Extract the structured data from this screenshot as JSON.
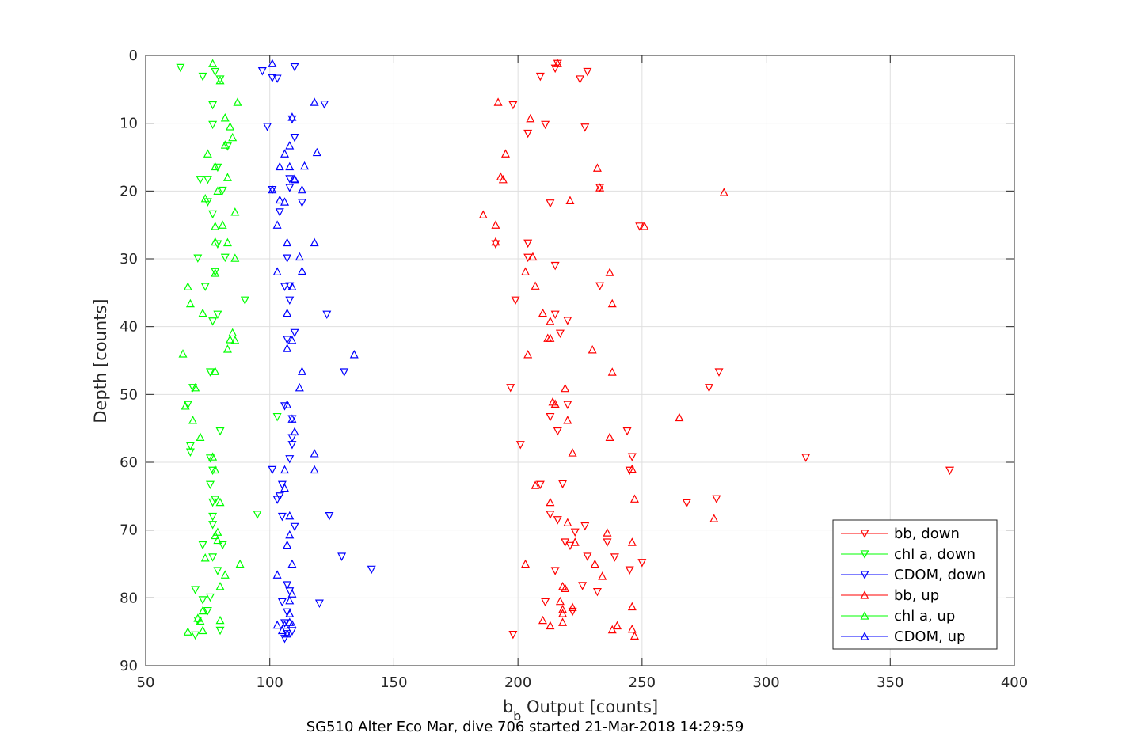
{
  "chart_data": {
    "type": "scatter",
    "title": "",
    "caption": "SG510 Alter Eco Mar, dive 706 started 21-Mar-2018 14:29:59",
    "xlabel_main": "b",
    "xlabel_sub": "b",
    "xlabel_rest": " Output [counts]",
    "ylabel": "Depth [counts]",
    "xlim": [
      50,
      400
    ],
    "ylim": [
      0,
      90
    ],
    "y_reversed": true,
    "grid": true,
    "xticks": [
      "50",
      "100",
      "150",
      "200",
      "250",
      "300",
      "350",
      "400"
    ],
    "yticks": [
      "0",
      "10",
      "20",
      "30",
      "40",
      "50",
      "60",
      "70",
      "80",
      "90"
    ],
    "legend_position": "bottom-right",
    "series": [
      {
        "name": "bb, down",
        "color": "#ff0000",
        "marker": "triangle-down",
        "x": [
          216,
          215,
          228,
          209,
          225,
          198,
          211,
          227,
          204,
          213,
          249,
          204,
          191,
          215,
          233,
          199,
          233,
          204,
          215,
          220,
          217,
          197,
          220,
          213,
          281,
          277,
          216,
          201,
          244,
          246,
          245,
          218,
          209,
          280,
          268,
          213,
          216,
          227,
          223,
          219,
          236,
          239,
          245,
          316,
          374,
          221,
          228,
          250,
          215,
          226,
          232,
          211,
          222,
          198
        ],
        "y": [
          1.2,
          1.9,
          2.4,
          3.1,
          3.5,
          7.3,
          10.2,
          10.6,
          11.5,
          21.8,
          25.2,
          27.7,
          27.8,
          31.0,
          34.0,
          36.1,
          19.5,
          29.8,
          38.2,
          39.1,
          41.0,
          49.0,
          51.5,
          53.3,
          46.7,
          49.0,
          55.4,
          57.4,
          55.4,
          59.2,
          61.2,
          63.2,
          63.3,
          65.4,
          66.0,
          67.7,
          68.5,
          69.4,
          70.3,
          71.8,
          71.8,
          74.0,
          75.9,
          59.3,
          61.2,
          72.3,
          73.9,
          74.8,
          76.0,
          78.2,
          79.1,
          80.6,
          82.0,
          85.4
        ]
      },
      {
        "name": "chl a, down",
        "color": "#00ff00",
        "marker": "triangle-down",
        "x": [
          64,
          78,
          73,
          80,
          77,
          77,
          83,
          75,
          79,
          72,
          81,
          75,
          77,
          79,
          82,
          71,
          78,
          74,
          90,
          79,
          77,
          76,
          69,
          67,
          103,
          80,
          68,
          68,
          76,
          77,
          76,
          78,
          77,
          77,
          95,
          81,
          73,
          77,
          79,
          70,
          73,
          75,
          71,
          80,
          70,
          76,
          77
        ],
        "y": [
          1.8,
          2.4,
          3.1,
          3.5,
          7.3,
          10.2,
          13.4,
          18.3,
          16.5,
          18.3,
          19.9,
          21.6,
          23.4,
          27.8,
          29.8,
          29.9,
          31.9,
          34.1,
          36.1,
          38.2,
          39.2,
          46.7,
          49.0,
          51.5,
          53.3,
          55.4,
          57.6,
          58.5,
          59.4,
          61.2,
          63.3,
          65.5,
          65.9,
          68.0,
          67.7,
          72.2,
          72.2,
          74.0,
          76.0,
          78.8,
          80.3,
          81.9,
          83.3,
          84.8,
          85.5,
          79.9,
          69.2
        ]
      },
      {
        "name": "CDOM, down",
        "color": "#0000ff",
        "marker": "triangle-down",
        "x": [
          110,
          97,
          101,
          103,
          122,
          109,
          99,
          110,
          108,
          108,
          101,
          113,
          104,
          107,
          108,
          106,
          108,
          123,
          110,
          107,
          130,
          106,
          109,
          109,
          109,
          101,
          108,
          105,
          103,
          104,
          124,
          105,
          110,
          129,
          141,
          107,
          105,
          120,
          108,
          107,
          106,
          109,
          107,
          106
        ],
        "y": [
          1.7,
          2.3,
          3.3,
          3.4,
          7.2,
          9.4,
          10.5,
          12.1,
          18.2,
          19.5,
          19.8,
          21.7,
          23.1,
          29.9,
          34.0,
          34.1,
          36.1,
          38.2,
          40.9,
          41.9,
          46.7,
          51.7,
          53.6,
          57.4,
          56.4,
          61.1,
          59.5,
          63.3,
          65.5,
          65.0,
          67.9,
          68.0,
          69.5,
          73.9,
          75.8,
          78.1,
          80.6,
          80.8,
          79.0,
          82.1,
          83.7,
          84.9,
          85.3,
          86.0
        ]
      },
      {
        "name": "bb, up",
        "color": "#ff0000",
        "marker": "triangle-up",
        "x": [
          216,
          192,
          205,
          232,
          194,
          193,
          195,
          221,
          233,
          186,
          191,
          191,
          206,
          203,
          207,
          210,
          213,
          237,
          238,
          212,
          213,
          230,
          204,
          238,
          214,
          220,
          237,
          222,
          283,
          251,
          220,
          236,
          279,
          223,
          246,
          247,
          265,
          215,
          219,
          207,
          203,
          246,
          231,
          213,
          234,
          218,
          219,
          217,
          222,
          238,
          240,
          246,
          218,
          210,
          213,
          218,
          218,
          246,
          247
        ],
        "y": [
          1.2,
          6.9,
          9.3,
          16.6,
          18.3,
          17.9,
          14.5,
          21.4,
          19.5,
          23.5,
          25.0,
          27.5,
          29.7,
          31.9,
          34.0,
          38.0,
          39.2,
          32.0,
          36.6,
          41.7,
          41.7,
          43.4,
          44.1,
          46.7,
          51.1,
          53.8,
          56.3,
          58.6,
          20.2,
          25.2,
          68.9,
          70.4,
          68.3,
          71.8,
          61.0,
          65.4,
          53.4,
          51.4,
          49.1,
          63.4,
          75.0,
          71.8,
          75.0,
          65.9,
          76.8,
          78.3,
          78.6,
          80.5,
          81.4,
          84.7,
          84.1,
          84.6,
          83.6,
          83.3,
          84.1,
          82.3,
          81.7,
          81.3,
          85.6
        ]
      },
      {
        "name": "chl a, up",
        "color": "#00ff00",
        "marker": "triangle-up",
        "x": [
          77,
          87,
          82,
          84,
          85,
          80,
          82,
          75,
          78,
          79,
          83,
          74,
          86,
          78,
          78,
          81,
          83,
          86,
          67,
          68,
          73,
          78,
          85,
          84,
          86,
          83,
          65,
          78,
          70,
          66,
          69,
          72,
          77,
          78,
          80,
          88,
          79,
          79,
          82,
          80,
          78,
          74,
          73,
          67,
          71,
          73,
          72,
          80
        ],
        "y": [
          1.2,
          6.9,
          9.2,
          10.5,
          12.1,
          3.7,
          13.2,
          14.5,
          16.4,
          20.0,
          18.0,
          21.1,
          23.1,
          25.2,
          27.5,
          25.0,
          27.6,
          29.9,
          34.1,
          36.6,
          38.0,
          32.1,
          40.9,
          41.9,
          42.0,
          43.3,
          44.0,
          46.6,
          49.0,
          51.7,
          53.8,
          56.3,
          59.2,
          61.1,
          65.9,
          75.0,
          70.3,
          71.5,
          76.6,
          78.3,
          70.8,
          74.1,
          81.9,
          85.0,
          83.0,
          84.8,
          83.4,
          83.3
        ]
      },
      {
        "name": "CDOM, up",
        "color": "#0000ff",
        "marker": "triangle-up",
        "x": [
          101,
          118,
          109,
          108,
          106,
          108,
          119,
          114,
          104,
          101,
          104,
          106,
          110,
          110,
          113,
          103,
          118,
          103,
          107,
          113,
          109,
          112,
          107,
          134,
          113,
          112,
          107,
          109,
          109,
          110,
          118,
          107,
          106,
          118,
          106,
          108,
          108,
          107,
          109,
          103,
          109,
          108,
          108,
          108,
          106,
          103,
          107,
          105,
          109
        ],
        "y": [
          1.2,
          6.9,
          9.1,
          13.3,
          14.5,
          16.4,
          14.3,
          16.3,
          16.4,
          19.8,
          21.3,
          21.6,
          18.2,
          18.3,
          19.8,
          25.0,
          27.6,
          31.9,
          27.6,
          31.8,
          34.1,
          29.7,
          38.0,
          44.1,
          46.6,
          49.0,
          43.2,
          42.0,
          53.6,
          55.5,
          58.7,
          51.5,
          61.1,
          61.1,
          63.8,
          67.9,
          70.7,
          72.2,
          75.0,
          76.6,
          79.4,
          80.4,
          82.3,
          83.6,
          84.0,
          84.0,
          85.3,
          84.8,
          83.9
        ]
      }
    ]
  }
}
